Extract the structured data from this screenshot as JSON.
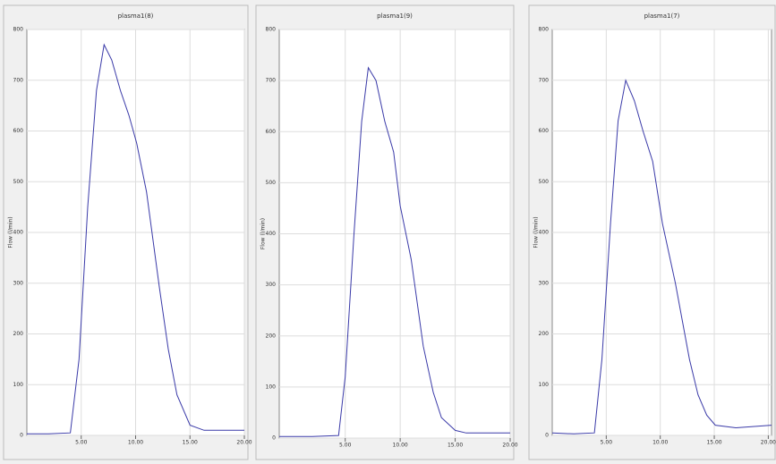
{
  "chart_data": [
    {
      "type": "line",
      "title": "plasma1(8)",
      "y_label": "Flow (l/min)",
      "color": "#3a3aa8",
      "x": [
        0,
        2,
        4,
        4.8,
        5.6,
        6.4,
        7.1,
        7.8,
        8.6,
        9.4,
        10.1,
        11,
        12.2,
        13,
        13.8,
        15,
        16.3,
        18,
        20
      ],
      "values": [
        3,
        3,
        5,
        150,
        450,
        680,
        770,
        740,
        680,
        630,
        576,
        480,
        290,
        170,
        80,
        20,
        10,
        10,
        10
      ],
      "xlim": [
        0,
        20
      ],
      "ylim": [
        0,
        800
      ],
      "xticks": [
        {
          "value": 5,
          "label": "5.00"
        },
        {
          "value": 10,
          "label": "10.00"
        },
        {
          "value": 15,
          "label": "15.00"
        },
        {
          "value": 20,
          "label": "20.00"
        }
      ],
      "yticks": [
        0,
        100,
        200,
        300,
        400,
        500,
        600,
        700,
        800
      ],
      "grid": true
    },
    {
      "type": "line",
      "title": "plasma1(9)",
      "y_label": "Flow (l/min)",
      "color": "#3a3aa8",
      "x": [
        -1,
        2,
        4.4,
        5,
        5.8,
        6.5,
        7.1,
        7.8,
        8.6,
        9.4,
        10,
        11,
        12.1,
        13,
        13.75,
        15,
        16,
        18,
        20
      ],
      "values": [
        3,
        3,
        5,
        120,
        400,
        620,
        725,
        700,
        620,
        560,
        455,
        350,
        180,
        90,
        40,
        15,
        10,
        10,
        10
      ],
      "xlim": [
        -1,
        20
      ],
      "ylim": [
        0,
        800
      ],
      "xticks": [
        {
          "value": 5,
          "label": "5.00"
        },
        {
          "value": 10,
          "label": "10.00"
        },
        {
          "value": 15,
          "label": "15.00"
        },
        {
          "value": 20,
          "label": "20.00"
        }
      ],
      "yticks": [
        0,
        100,
        200,
        300,
        400,
        500,
        600,
        700,
        800
      ],
      "grid": true
    },
    {
      "type": "line",
      "title": "plasma1(7)",
      "y_label": "Flow (l/min)",
      "color": "#3a3aa8",
      "x": [
        0,
        2,
        3.9,
        4.6,
        5.4,
        6.1,
        6.8,
        7.6,
        8.4,
        9.3,
        10.2,
        11.4,
        12.7,
        13.5,
        14.3,
        15.1,
        17,
        20.3
      ],
      "values": [
        5,
        3,
        5,
        150,
        420,
        620,
        700,
        660,
        600,
        540,
        418,
        300,
        150,
        80,
        40,
        20,
        15,
        20
      ],
      "xlim": [
        0,
        20.3
      ],
      "ylim": [
        0,
        800
      ],
      "xticks": [
        {
          "value": 5,
          "label": "5.00"
        },
        {
          "value": 10,
          "label": "10.00"
        },
        {
          "value": 15,
          "label": "15.00"
        },
        {
          "value": 20,
          "label": "20.00"
        }
      ],
      "yticks": [
        0,
        100,
        200,
        300,
        400,
        500,
        600,
        700,
        800
      ],
      "grid": true
    }
  ]
}
